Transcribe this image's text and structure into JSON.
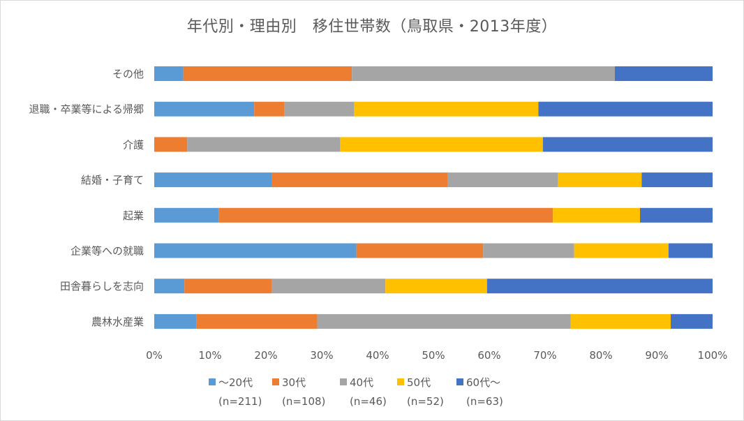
{
  "chart_data": {
    "type": "bar",
    "orientation": "horizontal",
    "stacked": "percent",
    "title": "年代別・理由別　移住世帯数（鳥取県・2013年度）",
    "categories": [
      "その他",
      "退職・卒業等による帰郷",
      "介護",
      "結婚・子育て",
      "起業",
      "企業等への就職",
      "田舎暮らしを志向",
      "農林水産業"
    ],
    "series": [
      {
        "name": "～20代",
        "note": "(n=211)",
        "color": "#5b9bd5",
        "values": [
          5.2,
          17.9,
          0.0,
          21.0,
          11.6,
          36.2,
          5.4,
          7.6
        ]
      },
      {
        "name": "30代",
        "note": "(n=108)",
        "color": "#ed7d31",
        "values": [
          30.2,
          5.4,
          5.9,
          31.5,
          59.8,
          22.7,
          15.7,
          21.6
        ]
      },
      {
        "name": "40代",
        "note": "(n=46)",
        "color": "#a5a5a5",
        "values": [
          47.1,
          12.5,
          27.4,
          19.8,
          0.0,
          16.3,
          20.3,
          45.4
        ]
      },
      {
        "name": "50代",
        "note": "(n=52)",
        "color": "#ffc000",
        "values": [
          0.0,
          33.0,
          36.3,
          15.0,
          15.6,
          16.9,
          18.2,
          17.9
        ]
      },
      {
        "name": "60代～",
        "note": "(n=63)",
        "color": "#4472c4",
        "values": [
          17.5,
          31.2,
          30.4,
          12.7,
          13.0,
          7.9,
          40.4,
          7.5
        ]
      }
    ],
    "xlim": [
      0,
      100
    ],
    "x_ticks": [
      "0%",
      "10%",
      "20%",
      "30%",
      "40%",
      "50%",
      "60%",
      "70%",
      "80%",
      "90%",
      "100%"
    ],
    "grid": false,
    "legend_position": "bottom"
  }
}
